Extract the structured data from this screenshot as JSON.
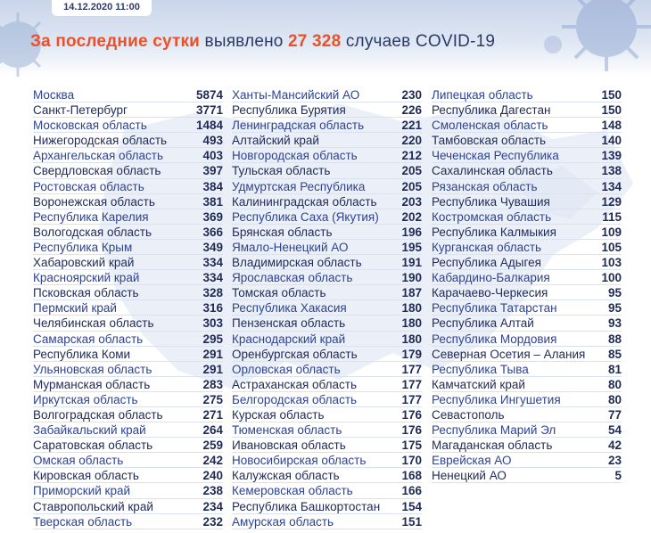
{
  "header": {
    "date": "14.12.2020 11:00",
    "headline_prefix": "За последние сутки",
    "headline_mid": " выявлено ",
    "headline_number": "27 328",
    "headline_suffix": " случаев COVID-19"
  },
  "colors": {
    "accent": "#e8512c",
    "navy": "#1f2a55",
    "blue": "#2e4390"
  },
  "columns": [
    [
      {
        "name": "Москва",
        "value": "5874"
      },
      {
        "name": "Санкт-Петербург",
        "value": "3771"
      },
      {
        "name": "Московская область",
        "value": "1484"
      },
      {
        "name": "Нижегородская область",
        "value": "493"
      },
      {
        "name": "Архангельская область",
        "value": "403"
      },
      {
        "name": "Свердловская область",
        "value": "397"
      },
      {
        "name": "Ростовская область",
        "value": "384"
      },
      {
        "name": "Воронежская область",
        "value": "381"
      },
      {
        "name": "Республика Карелия",
        "value": "369"
      },
      {
        "name": "Вологодская область",
        "value": "366"
      },
      {
        "name": "Республика Крым",
        "value": "349"
      },
      {
        "name": "Хабаровский край",
        "value": "334"
      },
      {
        "name": "Красноярский край",
        "value": "334"
      },
      {
        "name": "Псковская область",
        "value": "328"
      },
      {
        "name": "Пермский край",
        "value": "316"
      },
      {
        "name": "Челябинская область",
        "value": "303"
      },
      {
        "name": "Самарская область",
        "value": "295"
      },
      {
        "name": "Республика Коми",
        "value": "291"
      },
      {
        "name": "Ульяновская область",
        "value": "291"
      },
      {
        "name": "Мурманская область",
        "value": "283"
      },
      {
        "name": "Иркутская область",
        "value": "275"
      },
      {
        "name": "Волгоградская область",
        "value": "271"
      },
      {
        "name": "Забайкальский край",
        "value": "264"
      },
      {
        "name": "Саратовская область",
        "value": "259"
      },
      {
        "name": "Омская область",
        "value": "242"
      },
      {
        "name": "Кировская область",
        "value": "240"
      },
      {
        "name": "Приморский край",
        "value": "238"
      },
      {
        "name": "Ставропольский край",
        "value": "234"
      },
      {
        "name": "Тверская область",
        "value": "232"
      }
    ],
    [
      {
        "name": "Ханты-Мансийский АО",
        "value": "230"
      },
      {
        "name": "Республика Бурятия",
        "value": "226"
      },
      {
        "name": "Ленинградская область",
        "value": "221"
      },
      {
        "name": "Алтайский край",
        "value": "220"
      },
      {
        "name": "Новгородская область",
        "value": "212"
      },
      {
        "name": "Тульская область",
        "value": "205"
      },
      {
        "name": "Удмуртская Республика",
        "value": "205"
      },
      {
        "name": "Калининградская область",
        "value": "203"
      },
      {
        "name": "Республика Саха (Якутия)",
        "value": "202"
      },
      {
        "name": "Брянская область",
        "value": "196"
      },
      {
        "name": "Ямало-Ненецкий АО",
        "value": "195"
      },
      {
        "name": "Владимирская область",
        "value": "191"
      },
      {
        "name": "Ярославская область",
        "value": "190"
      },
      {
        "name": "Томская область",
        "value": "187"
      },
      {
        "name": "Республика Хакасия",
        "value": "180"
      },
      {
        "name": "Пензенская область",
        "value": "180"
      },
      {
        "name": "Краснодарский край",
        "value": "180"
      },
      {
        "name": "Оренбургская область",
        "value": "179"
      },
      {
        "name": "Орловская область",
        "value": "177"
      },
      {
        "name": "Астраханская область",
        "value": "177"
      },
      {
        "name": "Белгородская область",
        "value": "177"
      },
      {
        "name": "Курская область",
        "value": "176"
      },
      {
        "name": "Тюменская область",
        "value": "176"
      },
      {
        "name": "Ивановская область",
        "value": "175"
      },
      {
        "name": "Новосибирская область",
        "value": "170"
      },
      {
        "name": "Калужская область",
        "value": "168"
      },
      {
        "name": "Кемеровская область",
        "value": "166"
      },
      {
        "name": "Республика Башкортостан",
        "value": "154"
      },
      {
        "name": "Амурская область",
        "value": "151"
      }
    ],
    [
      {
        "name": "Липецкая область",
        "value": "150"
      },
      {
        "name": "Республика Дагестан",
        "value": "150"
      },
      {
        "name": "Смоленская область",
        "value": "148"
      },
      {
        "name": "Тамбовская область",
        "value": "140"
      },
      {
        "name": "Чеченская Республика",
        "value": "139"
      },
      {
        "name": "Сахалинская область",
        "value": "138"
      },
      {
        "name": "Рязанская область",
        "value": "134"
      },
      {
        "name": "Республика Чувашия",
        "value": "129"
      },
      {
        "name": "Костромская область",
        "value": "115"
      },
      {
        "name": "Республика Калмыкия",
        "value": "109"
      },
      {
        "name": "Курганская область",
        "value": "105"
      },
      {
        "name": "Республика Адыгея",
        "value": "103"
      },
      {
        "name": "Кабардино-Балкария",
        "value": "100"
      },
      {
        "name": "Карачаево-Черкесия",
        "value": "95"
      },
      {
        "name": "Республика Татарстан",
        "value": "95"
      },
      {
        "name": "Республика Алтай",
        "value": "93"
      },
      {
        "name": "Республика Мордовия",
        "value": "88"
      },
      {
        "name": "Северная Осетия – Алания",
        "value": "85"
      },
      {
        "name": "Республика Тыва",
        "value": "81"
      },
      {
        "name": "Камчатский край",
        "value": "80"
      },
      {
        "name": "Республика Ингушетия",
        "value": "80"
      },
      {
        "name": "Севастополь",
        "value": "77"
      },
      {
        "name": "Республика Марий Эл",
        "value": "54"
      },
      {
        "name": "Магаданская область",
        "value": "42"
      },
      {
        "name": "Еврейская АО",
        "value": "23"
      },
      {
        "name": "Ненецкий АО",
        "value": "5"
      }
    ]
  ]
}
